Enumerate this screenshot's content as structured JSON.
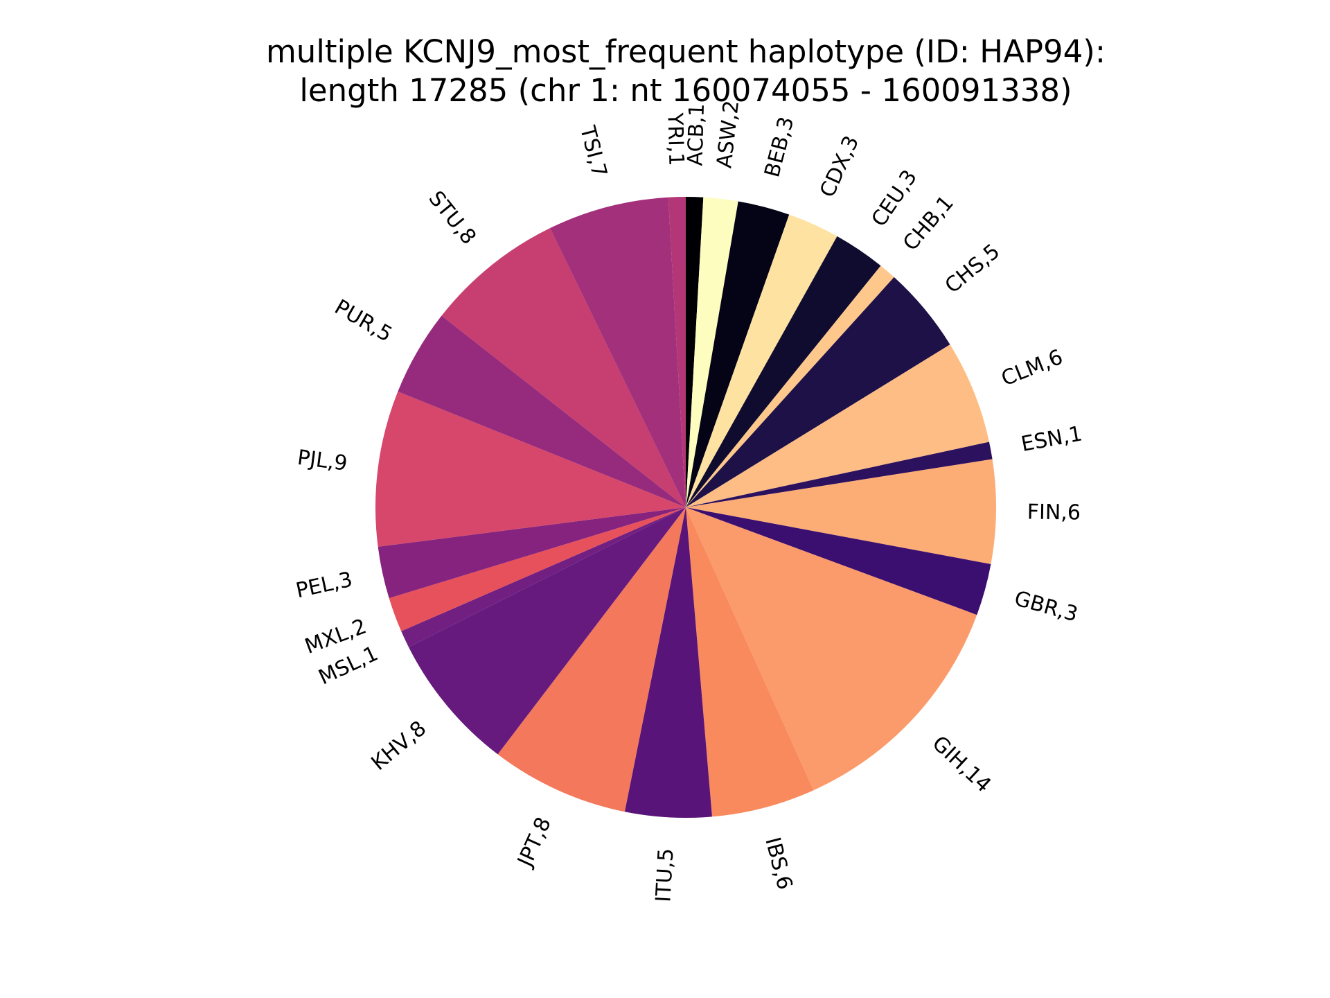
{
  "chart_data": {
    "type": "pie",
    "title_lines": [
      "multiple KCNJ9_most_frequent haplotype (ID: HAP94):",
      "length 17285 (chr 1: nt 160074055 - 160091338)"
    ],
    "start_angle_deg": 90,
    "direction": "clockwise",
    "slices": [
      {
        "label": "ACB,1",
        "value": 1,
        "color": "#000004"
      },
      {
        "label": "ASW,2",
        "value": 2,
        "color": "#fcfdbf"
      },
      {
        "label": "BEB,3",
        "value": 3,
        "color": "#050417"
      },
      {
        "label": "CDX,3",
        "value": 3,
        "color": "#fde2a2"
      },
      {
        "label": "CEU,3",
        "value": 3,
        "color": "#100c2f"
      },
      {
        "label": "CHB,1",
        "value": 1,
        "color": "#fec88c"
      },
      {
        "label": "CHS,5",
        "value": 5,
        "color": "#1d1147"
      },
      {
        "label": "CLM,6",
        "value": 6,
        "color": "#fdbd84"
      },
      {
        "label": "ESN,1",
        "value": 1,
        "color": "#2c115f"
      },
      {
        "label": "FIN,6",
        "value": 6,
        "color": "#fcac75"
      },
      {
        "label": "GBR,3",
        "value": 3,
        "color": "#3b0f70"
      },
      {
        "label": "GIH,14",
        "value": 14,
        "color": "#fb9b6b"
      },
      {
        "label": "IBS,6",
        "value": 6,
        "color": "#f98a5e"
      },
      {
        "label": "ITU,5",
        "value": 5,
        "color": "#581478"
      },
      {
        "label": "JPT,8",
        "value": 8,
        "color": "#f4785c"
      },
      {
        "label": "KHV,8",
        "value": 8,
        "color": "#661a7e"
      },
      {
        "label": "MSL,1",
        "value": 1,
        "color": "#711f81"
      },
      {
        "label": "MXL,2",
        "value": 2,
        "color": "#e6515c"
      },
      {
        "label": "PEL,3",
        "value": 3,
        "color": "#86237e"
      },
      {
        "label": "PJL,9",
        "value": 9,
        "color": "#d6476b"
      },
      {
        "label": "PUR,5",
        "value": 5,
        "color": "#962b7d"
      },
      {
        "label": "STU,8",
        "value": 8,
        "color": "#c73e70"
      },
      {
        "label": "TSI,7",
        "value": 7,
        "color": "#a3307b"
      },
      {
        "label": "YRI,1",
        "value": 1,
        "color": "#b33677"
      }
    ]
  }
}
